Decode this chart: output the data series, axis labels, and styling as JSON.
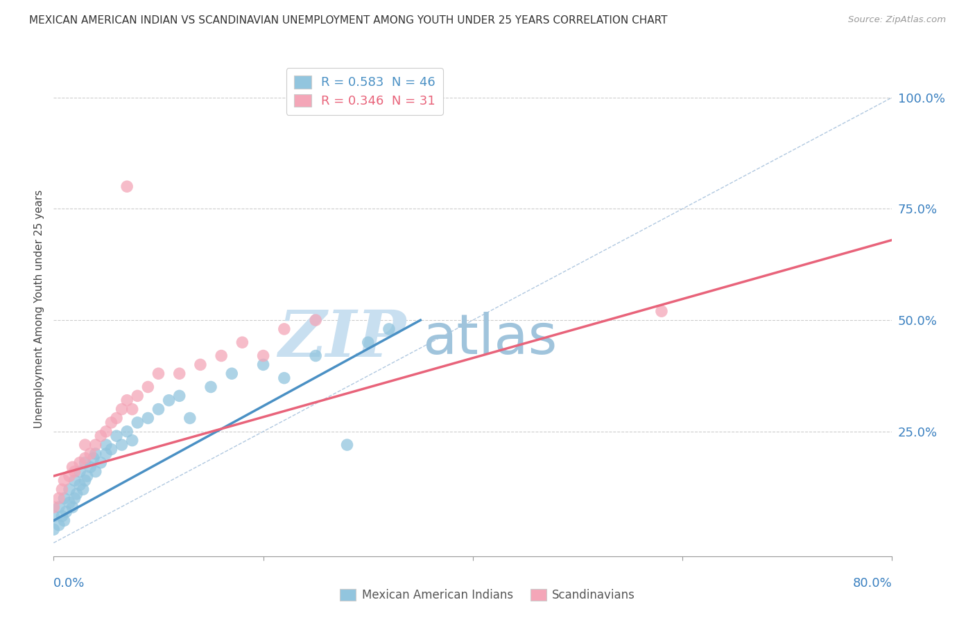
{
  "title": "MEXICAN AMERICAN INDIAN VS SCANDINAVIAN UNEMPLOYMENT AMONG YOUTH UNDER 25 YEARS CORRELATION CHART",
  "source": "Source: ZipAtlas.com",
  "ylabel": "Unemployment Among Youth under 25 years",
  "ytick_labels": [
    "100.0%",
    "75.0%",
    "50.0%",
    "25.0%"
  ],
  "ytick_values": [
    1.0,
    0.75,
    0.5,
    0.25
  ],
  "xmin": 0.0,
  "xmax": 0.8,
  "ymin": -0.03,
  "ymax": 1.08,
  "r_blue": 0.583,
  "n_blue": 46,
  "r_pink": 0.346,
  "n_pink": 31,
  "color_blue": "#92c5de",
  "color_pink": "#f4a6b8",
  "color_blue_line": "#4a90c4",
  "color_pink_line": "#e8637a",
  "color_ref_line": "#b0c8e0",
  "watermark_zip": "ZIP",
  "watermark_atlas": "atlas",
  "watermark_color_zip": "#c8dff0",
  "watermark_color_atlas": "#a0c4dc",
  "legend_label_blue": "Mexican American Indians",
  "legend_label_pink": "Scandinavians",
  "blue_scatter_x": [
    0.0,
    0.0,
    0.005,
    0.005,
    0.008,
    0.01,
    0.01,
    0.012,
    0.015,
    0.015,
    0.018,
    0.02,
    0.02,
    0.022,
    0.025,
    0.025,
    0.028,
    0.03,
    0.03,
    0.032,
    0.035,
    0.038,
    0.04,
    0.04,
    0.045,
    0.05,
    0.05,
    0.055,
    0.06,
    0.065,
    0.07,
    0.075,
    0.08,
    0.09,
    0.1,
    0.11,
    0.12,
    0.13,
    0.15,
    0.17,
    0.2,
    0.22,
    0.25,
    0.28,
    0.3,
    0.32
  ],
  "blue_scatter_y": [
    0.03,
    0.06,
    0.04,
    0.08,
    0.06,
    0.05,
    0.1,
    0.07,
    0.09,
    0.12,
    0.08,
    0.1,
    0.14,
    0.11,
    0.13,
    0.16,
    0.12,
    0.14,
    0.18,
    0.15,
    0.17,
    0.19,
    0.16,
    0.2,
    0.18,
    0.2,
    0.22,
    0.21,
    0.24,
    0.22,
    0.25,
    0.23,
    0.27,
    0.28,
    0.3,
    0.32,
    0.33,
    0.28,
    0.35,
    0.38,
    0.4,
    0.37,
    0.42,
    0.22,
    0.45,
    0.48
  ],
  "pink_scatter_x": [
    0.0,
    0.005,
    0.008,
    0.01,
    0.015,
    0.018,
    0.02,
    0.025,
    0.03,
    0.03,
    0.035,
    0.04,
    0.045,
    0.05,
    0.055,
    0.06,
    0.065,
    0.07,
    0.075,
    0.08,
    0.09,
    0.1,
    0.12,
    0.14,
    0.16,
    0.18,
    0.2,
    0.22,
    0.25,
    0.07,
    0.58
  ],
  "pink_scatter_y": [
    0.08,
    0.1,
    0.12,
    0.14,
    0.15,
    0.17,
    0.16,
    0.18,
    0.19,
    0.22,
    0.2,
    0.22,
    0.24,
    0.25,
    0.27,
    0.28,
    0.3,
    0.32,
    0.3,
    0.33,
    0.35,
    0.38,
    0.38,
    0.4,
    0.42,
    0.45,
    0.42,
    0.48,
    0.5,
    0.8,
    0.52
  ],
  "blue_line_x": [
    0.0,
    0.35
  ],
  "blue_line_y": [
    0.05,
    0.5
  ],
  "pink_line_x": [
    0.0,
    0.8
  ],
  "pink_line_y": [
    0.15,
    0.68
  ],
  "ref_line_x": [
    0.0,
    0.8
  ],
  "ref_line_y": [
    0.0,
    1.0
  ]
}
